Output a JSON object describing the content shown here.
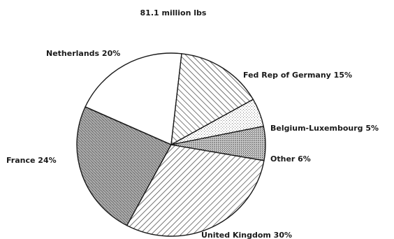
{
  "chart_data": {
    "type": "pie",
    "title": "81.1 million lbs",
    "slices": [
      {
        "label": "United Kingdom",
        "value": 30,
        "display": "United Kingdom 30%",
        "pattern": "hatch-right"
      },
      {
        "label": "France",
        "value": 24,
        "display": "France 24%",
        "pattern": "stipple-dark"
      },
      {
        "label": "Netherlands",
        "value": 20,
        "display": "Netherlands 20%",
        "pattern": "white"
      },
      {
        "label": "Fed Rep of Germany",
        "value": 15,
        "display": "Fed Rep of Germany 15%",
        "pattern": "hatch-left"
      },
      {
        "label": "Belgium-Luxembourg",
        "value": 5,
        "display": "Belgium-Luxembourg 5%",
        "pattern": "dots-light"
      },
      {
        "label": "Other",
        "value": 6,
        "display": "Other 6%",
        "pattern": "dots-dense"
      }
    ],
    "legend": "none",
    "colors": {
      "ink": "#1a1a1a",
      "background": "#ffffff"
    }
  }
}
